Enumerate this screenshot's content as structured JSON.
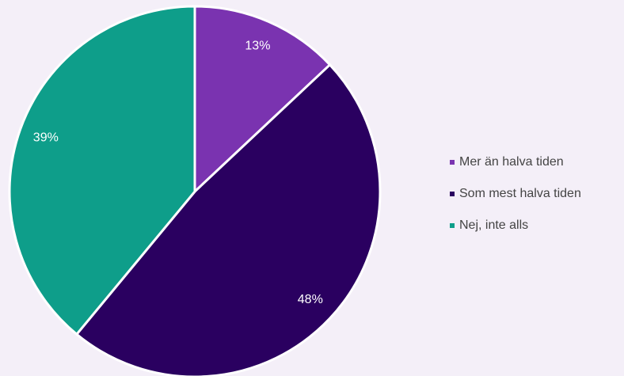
{
  "chart_data": {
    "type": "pie",
    "categories": [
      "Mer än halva tiden",
      "Som mest halva tiden",
      "Nej, inte alls"
    ],
    "values": [
      13,
      48,
      39
    ],
    "value_labels": [
      "13%",
      "48%",
      "39%"
    ],
    "colors": [
      "#7a33b0",
      "#2a0060",
      "#0e9e8a"
    ],
    "legend": "right"
  }
}
